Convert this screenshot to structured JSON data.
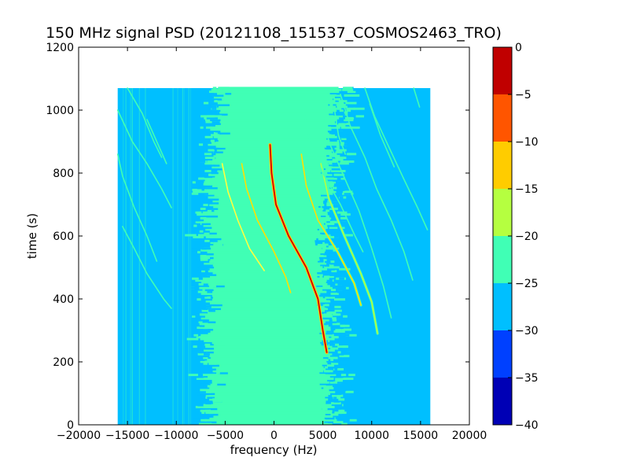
{
  "chart_data": {
    "type": "heatmap",
    "title": "150 MHz signal PSD (20121108_151537_COSMOS2463_TRO)",
    "xlabel": "frequency (Hz)",
    "ylabel": "time (s)",
    "xlim": [
      -20000,
      20000
    ],
    "ylim": [
      0,
      1200
    ],
    "x_ticks": [
      -20000,
      -15000,
      -10000,
      -5000,
      0,
      5000,
      10000,
      15000,
      20000
    ],
    "x_tick_labels": [
      "−20000",
      "−15000",
      "−10000",
      "−5000",
      "0",
      "5000",
      "10000",
      "15000",
      "20000"
    ],
    "y_ticks": [
      0,
      200,
      400,
      600,
      800,
      1000,
      1200
    ],
    "y_tick_labels": [
      "0",
      "200",
      "400",
      "600",
      "800",
      "1000",
      "1200"
    ],
    "data_extent": {
      "x": [
        -16000,
        16000
      ],
      "y": [
        0,
        1070
      ]
    },
    "background_level_range": [
      -30,
      -25
    ],
    "noise_band": {
      "label_range": [
        -25,
        -20
      ],
      "center_x_at_time": [
        [
          0,
          -300
        ],
        [
          200,
          -600
        ],
        [
          600,
          -1000
        ],
        [
          900,
          0
        ],
        [
          1070,
          500
        ]
      ],
      "half_width": 6000
    },
    "colorbar": {
      "levels": [
        -40,
        -35,
        -30,
        -25,
        -20,
        -15,
        -10,
        -5,
        0
      ],
      "tick_labels": [
        "−40",
        "−35",
        "−30",
        "−25",
        "−20",
        "−15",
        "−10",
        "−5",
        "0"
      ],
      "colors": [
        "#0000b5",
        "#0040ff",
        "#00bfff",
        "#40ffb5",
        "#b5ff40",
        "#ffcc00",
        "#ff5500",
        "#c00000"
      ]
    },
    "traces": [
      {
        "level": -2,
        "color": "#d00000",
        "points": [
          [
            -400,
            890
          ],
          [
            -250,
            800
          ],
          [
            200,
            700
          ],
          [
            1500,
            600
          ],
          [
            3300,
            500
          ],
          [
            4500,
            400
          ],
          [
            5000,
            300
          ],
          [
            5400,
            230
          ]
        ]
      },
      {
        "level": -12,
        "color": "#ffe000",
        "points": [
          [
            -3300,
            830
          ],
          [
            -2800,
            750
          ],
          [
            -1700,
            650
          ],
          [
            0,
            550
          ],
          [
            1200,
            470
          ],
          [
            1700,
            420
          ]
        ]
      },
      {
        "level": -14,
        "color": "#ffff40",
        "points": [
          [
            -5300,
            830
          ],
          [
            -4700,
            740
          ],
          [
            -3700,
            650
          ],
          [
            -2500,
            560
          ],
          [
            -1000,
            490
          ]
        ]
      },
      {
        "level": -12,
        "color": "#ffe000",
        "points": [
          [
            2800,
            860
          ],
          [
            3300,
            760
          ],
          [
            4500,
            650
          ],
          [
            6500,
            550
          ],
          [
            8200,
            450
          ],
          [
            8900,
            380
          ]
        ]
      },
      {
        "level": -18,
        "color": "#b5ff40",
        "points": [
          [
            4800,
            830
          ],
          [
            5600,
            720
          ],
          [
            7200,
            600
          ],
          [
            8900,
            480
          ],
          [
            10000,
            390
          ],
          [
            10600,
            290
          ]
        ]
      },
      {
        "level": -20,
        "color": "#40ffb5",
        "points": [
          [
            5100,
            1000
          ],
          [
            5600,
            900
          ],
          [
            7000,
            800
          ],
          [
            8700,
            680
          ],
          [
            10000,
            560
          ],
          [
            11200,
            440
          ],
          [
            12000,
            340
          ]
        ]
      },
      {
        "level": -20,
        "color": "#40ffb5",
        "points": [
          [
            6800,
            1050
          ],
          [
            7800,
            950
          ],
          [
            9300,
            850
          ],
          [
            10500,
            750
          ],
          [
            12000,
            650
          ],
          [
            13300,
            550
          ],
          [
            14200,
            460
          ]
        ]
      },
      {
        "level": -20,
        "color": "#40ffb5",
        "points": [
          [
            9300,
            1070
          ],
          [
            10300,
            980
          ],
          [
            11800,
            880
          ],
          [
            13300,
            780
          ],
          [
            14700,
            690
          ],
          [
            15700,
            620
          ]
        ]
      },
      {
        "level": -20,
        "color": "#40ffb5",
        "points": [
          [
            3000,
            1000
          ],
          [
            3700,
            900
          ],
          [
            5000,
            800
          ],
          [
            6800,
            700
          ],
          [
            8300,
            600
          ],
          [
            9100,
            550
          ]
        ]
      },
      {
        "level": -20,
        "color": "#40ffb5",
        "points": [
          [
            6200,
            1000
          ],
          [
            6600,
            920
          ],
          [
            7300,
            860
          ]
        ]
      },
      {
        "level": -20,
        "color": "#40ffb5",
        "points": [
          [
            9800,
            1020
          ],
          [
            10900,
            920
          ],
          [
            12300,
            820
          ]
        ]
      },
      {
        "level": -20,
        "color": "#40ffb5",
        "points": [
          [
            14300,
            1070
          ],
          [
            14900,
            1010
          ]
        ]
      },
      {
        "level": -20,
        "color": "#40ffb5",
        "points": [
          [
            -16000,
            1000
          ],
          [
            -14500,
            900
          ],
          [
            -13000,
            830
          ],
          [
            -11500,
            750
          ],
          [
            -10500,
            690
          ]
        ]
      },
      {
        "level": -20,
        "color": "#40ffb5",
        "points": [
          [
            -16000,
            860
          ],
          [
            -15500,
            790
          ],
          [
            -14300,
            690
          ],
          [
            -13000,
            600
          ],
          [
            -12000,
            520
          ]
        ]
      },
      {
        "level": -20,
        "color": "#40ffb5",
        "points": [
          [
            -15500,
            630
          ],
          [
            -14300,
            560
          ],
          [
            -13000,
            480
          ],
          [
            -11300,
            400
          ],
          [
            -10500,
            370
          ]
        ]
      },
      {
        "level": -20,
        "color": "#40ffb5",
        "points": [
          [
            -15000,
            1070
          ],
          [
            -13500,
            990
          ],
          [
            -12300,
            900
          ],
          [
            -11500,
            850
          ]
        ]
      },
      {
        "level": -20,
        "color": "#40ffb5",
        "points": [
          [
            -13000,
            970
          ],
          [
            -12000,
            900
          ],
          [
            -11000,
            830
          ]
        ]
      }
    ]
  }
}
